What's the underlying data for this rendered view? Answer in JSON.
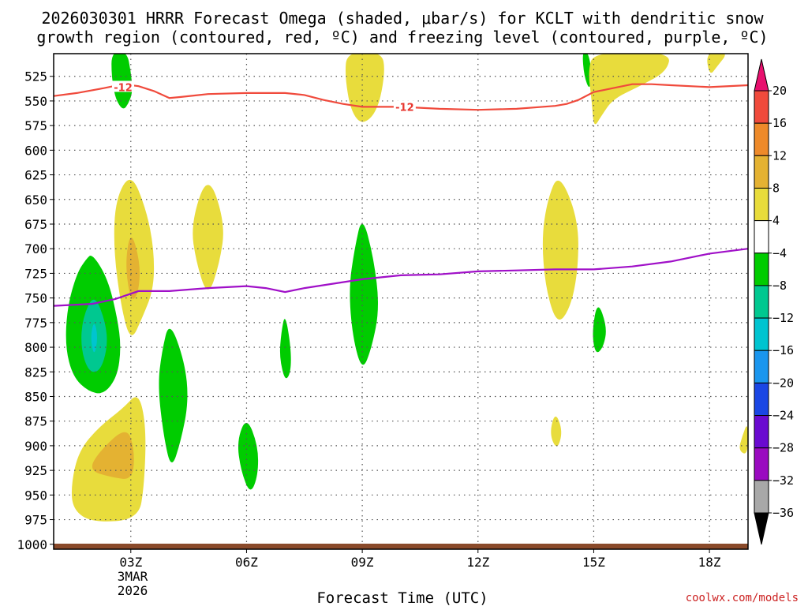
{
  "chart_data": {
    "type": "contour",
    "title_line1": "2026030301 HRRR Forecast Omega (shaded, μbar/s) for KCLT with dendritic snow",
    "title_line2": "growth region (contoured, red, ºC) and freezing level (contoured, purple, ºC)",
    "xlabel": "Forecast Time (UTC)",
    "date_line1": "3MAR",
    "date_line2": "2026",
    "credit": "coolwx.com/models",
    "xlim": [
      1,
      19
    ],
    "xticks": [
      {
        "hour": 3,
        "label": "03Z"
      },
      {
        "hour": 6,
        "label": "06Z"
      },
      {
        "hour": 9,
        "label": "09Z"
      },
      {
        "hour": 12,
        "label": "12Z"
      },
      {
        "hour": 15,
        "label": "15Z"
      },
      {
        "hour": 18,
        "label": "18Z"
      }
    ],
    "ylim": [
      1005,
      502
    ],
    "yticks": [
      525,
      550,
      575,
      600,
      625,
      650,
      675,
      700,
      725,
      750,
      775,
      800,
      825,
      850,
      875,
      900,
      925,
      950,
      975,
      1000
    ],
    "colorbar": {
      "levels": [
        {
          "label": "20",
          "color": "#e8106e"
        },
        {
          "label": "16",
          "color": "#f04a3c"
        },
        {
          "label": "12",
          "color": "#ee8a2a"
        },
        {
          "label": "8",
          "color": "#e4b232"
        },
        {
          "label": "4",
          "color": "#e8dc3c"
        },
        {
          "label": "−4",
          "color": "#ffffff"
        },
        {
          "label": "−8",
          "color": "#00cc00"
        },
        {
          "label": "−12",
          "color": "#00c890"
        },
        {
          "label": "−16",
          "color": "#00c4d0"
        },
        {
          "label": "−20",
          "color": "#1a96ee"
        },
        {
          "label": "−24",
          "color": "#1a46e4"
        },
        {
          "label": "−28",
          "color": "#6a0ad0"
        },
        {
          "label": "−32",
          "color": "#9a0ac0"
        },
        {
          "label": "−36",
          "color": "#a8a8a8"
        }
      ],
      "low_color": "#000000"
    },
    "isotherm_dgz": {
      "label": "-12",
      "color": "#f04a3c",
      "points": [
        [
          1,
          545
        ],
        [
          1.6,
          542
        ],
        [
          2.3,
          537
        ],
        [
          2.8,
          533
        ],
        [
          3.2,
          535
        ],
        [
          3.6,
          540
        ],
        [
          4,
          547
        ],
        [
          4.3,
          546
        ],
        [
          5,
          543
        ],
        [
          6,
          542
        ],
        [
          7,
          542
        ],
        [
          7.5,
          544
        ],
        [
          8,
          549
        ],
        [
          8.5,
          553
        ],
        [
          9,
          556
        ],
        [
          10,
          556
        ],
        [
          11,
          558
        ],
        [
          12,
          559
        ],
        [
          13,
          558
        ],
        [
          14,
          555
        ],
        [
          14.3,
          553
        ],
        [
          14.6,
          549
        ],
        [
          15,
          541
        ],
        [
          15.5,
          537
        ],
        [
          16,
          533
        ],
        [
          16.5,
          533
        ],
        [
          17,
          534
        ],
        [
          18,
          536
        ],
        [
          19,
          534
        ]
      ],
      "inline_labels": [
        [
          2.8,
          536
        ],
        [
          10.1,
          556
        ]
      ]
    },
    "freezing_level": {
      "color": "#a010c8",
      "points": [
        [
          1,
          758
        ],
        [
          2,
          756
        ],
        [
          2.6,
          751
        ],
        [
          3.2,
          743
        ],
        [
          4,
          743
        ],
        [
          5,
          740
        ],
        [
          6,
          738
        ],
        [
          6.5,
          740
        ],
        [
          7,
          744
        ],
        [
          7.5,
          740
        ],
        [
          8,
          737
        ],
        [
          9,
          731
        ],
        [
          10,
          727
        ],
        [
          11,
          726
        ],
        [
          12,
          723
        ],
        [
          13,
          722
        ],
        [
          14,
          721
        ],
        [
          15,
          721
        ],
        [
          16,
          718
        ],
        [
          17,
          713
        ],
        [
          18,
          705
        ],
        [
          19,
          700
        ]
      ]
    },
    "omega_regions": [
      {
        "level": "-8",
        "points": [
          [
            2.5,
            500
          ],
          [
            2.9,
            500
          ],
          [
            3.0,
            520
          ],
          [
            3.05,
            540
          ],
          [
            2.95,
            552
          ],
          [
            2.8,
            560
          ],
          [
            2.6,
            548
          ],
          [
            2.5,
            525
          ]
        ]
      },
      {
        "level": "-8",
        "points": [
          [
            2.0,
            705
          ],
          [
            2.4,
            730
          ],
          [
            2.65,
            770
          ],
          [
            2.75,
            800
          ],
          [
            2.65,
            830
          ],
          [
            2.3,
            848
          ],
          [
            1.9,
            845
          ],
          [
            1.5,
            830
          ],
          [
            1.3,
            800
          ],
          [
            1.35,
            760
          ],
          [
            1.6,
            725
          ],
          [
            1.85,
            710
          ]
        ]
      },
      {
        "level": "-12",
        "points": [
          [
            2.05,
            745
          ],
          [
            2.35,
            775
          ],
          [
            2.4,
            800
          ],
          [
            2.2,
            825
          ],
          [
            1.9,
            825
          ],
          [
            1.7,
            800
          ],
          [
            1.75,
            770
          ]
        ]
      },
      {
        "level": "-16",
        "points": [
          [
            2.05,
            772
          ],
          [
            2.15,
            790
          ],
          [
            2.05,
            810
          ],
          [
            1.95,
            790
          ]
        ]
      },
      {
        "level": "-8",
        "points": [
          [
            4.0,
            772
          ],
          [
            4.4,
            815
          ],
          [
            4.5,
            855
          ],
          [
            4.3,
            895
          ],
          [
            4.05,
            925
          ],
          [
            3.85,
            890
          ],
          [
            3.7,
            840
          ],
          [
            3.8,
            805
          ]
        ]
      },
      {
        "level": "-8",
        "points": [
          [
            6.0,
            870
          ],
          [
            6.3,
            900
          ],
          [
            6.3,
            930
          ],
          [
            6.1,
            950
          ],
          [
            5.85,
            925
          ],
          [
            5.75,
            895
          ]
        ]
      },
      {
        "level": "-8",
        "points": [
          [
            7.0,
            765
          ],
          [
            7.15,
            800
          ],
          [
            7.15,
            825
          ],
          [
            7.0,
            835
          ],
          [
            6.85,
            810
          ],
          [
            6.9,
            785
          ]
        ]
      },
      {
        "level": "-8",
        "points": [
          [
            9.0,
            665
          ],
          [
            9.3,
            710
          ],
          [
            9.45,
            760
          ],
          [
            9.25,
            800
          ],
          [
            9.0,
            825
          ],
          [
            8.75,
            790
          ],
          [
            8.65,
            740
          ],
          [
            8.8,
            700
          ]
        ]
      },
      {
        "level": "-8",
        "points": [
          [
            14.85,
            500
          ],
          [
            14.95,
            520
          ],
          [
            14.9,
            540
          ],
          [
            14.75,
            525
          ],
          [
            14.7,
            500
          ]
        ]
      },
      {
        "level": "-8",
        "points": [
          [
            15.1,
            752
          ],
          [
            15.35,
            780
          ],
          [
            15.25,
            800
          ],
          [
            15.05,
            808
          ],
          [
            14.95,
            785
          ]
        ]
      },
      {
        "level": "4",
        "points": [
          [
            8.6,
            500
          ],
          [
            9.5,
            500
          ],
          [
            9.6,
            520
          ],
          [
            9.4,
            560
          ],
          [
            9.0,
            575
          ],
          [
            8.7,
            560
          ],
          [
            8.55,
            525
          ]
        ]
      },
      {
        "level": "4",
        "points": [
          [
            15.0,
            500
          ],
          [
            17.0,
            500
          ],
          [
            16.9,
            520
          ],
          [
            16.2,
            535
          ],
          [
            15.5,
            548
          ],
          [
            15.2,
            565
          ],
          [
            15.0,
            578
          ],
          [
            14.95,
            550
          ],
          [
            14.85,
            520
          ]
        ]
      },
      {
        "level": "4",
        "points": [
          [
            17.9,
            500
          ],
          [
            18.5,
            500
          ],
          [
            18.2,
            515
          ],
          [
            18.0,
            525
          ]
        ]
      },
      {
        "level": "4",
        "points": [
          [
            3.0,
            622
          ],
          [
            3.4,
            660
          ],
          [
            3.6,
            700
          ],
          [
            3.6,
            740
          ],
          [
            3.3,
            770
          ],
          [
            3.0,
            795
          ],
          [
            2.75,
            760
          ],
          [
            2.55,
            700
          ],
          [
            2.6,
            650
          ]
        ]
      },
      {
        "level": "8",
        "points": [
          [
            3.0,
            680
          ],
          [
            3.25,
            715
          ],
          [
            3.2,
            745
          ],
          [
            3.0,
            755
          ],
          [
            2.85,
            715
          ]
        ]
      },
      {
        "level": "4",
        "points": [
          [
            5.0,
            622
          ],
          [
            5.45,
            675
          ],
          [
            5.3,
            715
          ],
          [
            5.0,
            750
          ],
          [
            4.7,
            715
          ],
          [
            4.55,
            675
          ]
        ]
      },
      {
        "level": "4",
        "points": [
          [
            14.1,
            622
          ],
          [
            14.6,
            670
          ],
          [
            14.6,
            720
          ],
          [
            14.4,
            760
          ],
          [
            14.05,
            778
          ],
          [
            13.75,
            740
          ],
          [
            13.65,
            690
          ],
          [
            13.8,
            650
          ]
        ]
      },
      {
        "level": "4",
        "points": [
          [
            14.0,
            865
          ],
          [
            14.2,
            885
          ],
          [
            14.05,
            905
          ],
          [
            13.85,
            888
          ]
        ]
      },
      {
        "level": "4",
        "points": [
          [
            19.0,
            875
          ],
          [
            19.0,
            910
          ],
          [
            18.75,
            905
          ],
          [
            18.85,
            890
          ]
        ]
      },
      {
        "level": "4",
        "points": [
          [
            3.2,
            845
          ],
          [
            3.4,
            880
          ],
          [
            3.35,
            940
          ],
          [
            3.2,
            975
          ],
          [
            2.0,
            978
          ],
          [
            1.5,
            965
          ],
          [
            1.45,
            940
          ],
          [
            1.65,
            905
          ],
          [
            2.2,
            880
          ],
          [
            2.8,
            862
          ]
        ]
      },
      {
        "level": "8",
        "points": [
          [
            2.9,
            880
          ],
          [
            3.1,
            905
          ],
          [
            3.05,
            935
          ],
          [
            2.5,
            932
          ],
          [
            1.9,
            925
          ],
          [
            2.2,
            905
          ]
        ]
      }
    ],
    "terrain_color": "#8a4a2a"
  }
}
